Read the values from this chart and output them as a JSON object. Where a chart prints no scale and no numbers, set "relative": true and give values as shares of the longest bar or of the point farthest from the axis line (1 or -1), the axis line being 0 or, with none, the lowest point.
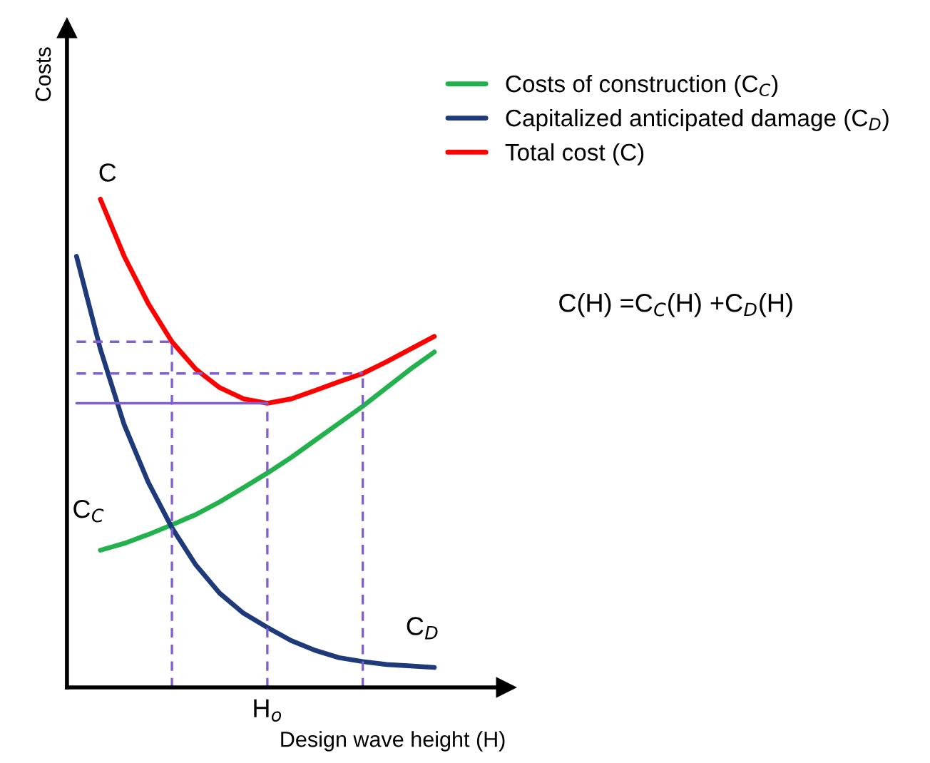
{
  "chart_data": {
    "type": "line",
    "relative": true,
    "xlabel": "Design wave height (H)",
    "categories": [
      null,
      null,
      null,
      null,
      null,
      null,
      null,
      null,
      null,
      null,
      null,
      null,
      null,
      null,
      null,
      null
    ],
    "tick_labels": false,
    "grid": false,
    "legend": "top right",
    "series": [
      {
        "name": "Costs of construction (C$_{C}$)",
        "color": "#22b14c",
        "values": [
          null,
          0.281,
          0.295,
          0.313,
          0.333,
          0.354,
          0.38,
          0.409,
          0.439,
          0.471,
          0.506,
          0.541,
          0.576,
          0.614,
          0.652,
          0.687
        ]
      },
      {
        "name": "Capitalized anticipated damage (C$_{D}$)",
        "color": "#1f3a7a",
        "values": [
          0.883,
          0.693,
          0.538,
          0.421,
          0.327,
          0.251,
          0.193,
          0.152,
          0.123,
          0.096,
          0.076,
          0.061,
          0.053,
          0.047,
          0.044,
          0.041
        ]
      },
      {
        "name": "Total cost (C)",
        "color": "#ff0000",
        "values": [
          null,
          1,
          0.883,
          0.787,
          0.708,
          0.652,
          0.614,
          0.591,
          0.582,
          0.591,
          0.608,
          0.626,
          0.643,
          0.667,
          0.693,
          0.719
        ]
      },
      {
        "color": "#8060d0",
        "line_style": "dashed",
        "values": [
          0.708,
          0.708,
          0.708,
          0.708,
          0.708,
          null,
          null,
          null,
          null,
          null,
          null,
          null,
          null,
          null,
          null,
          null
        ]
      },
      {
        "color": "#8060d0",
        "line_style": "solid",
        "values": [
          0.582,
          0.582,
          0.582,
          0.582,
          0.582,
          0.582,
          0.582,
          0.582,
          0.582,
          null,
          null,
          null,
          null,
          null,
          null,
          null
        ]
      },
      {
        "color": "#8060d0",
        "line_style": "dashed",
        "values": [
          0.643,
          0.643,
          0.643,
          0.643,
          0.643,
          0.643,
          0.643,
          0.643,
          0.643,
          0.643,
          0.643,
          0.643,
          0.643,
          null,
          null,
          null
        ]
      }
    ],
    "annotations": [
      "C",
      "C$_{C}$",
      "C$_{D}$",
      "C(H) =C$_{C}$(H) +C$_{D}$(H)",
      "H$_{o}$",
      "Costs"
    ]
  }
}
